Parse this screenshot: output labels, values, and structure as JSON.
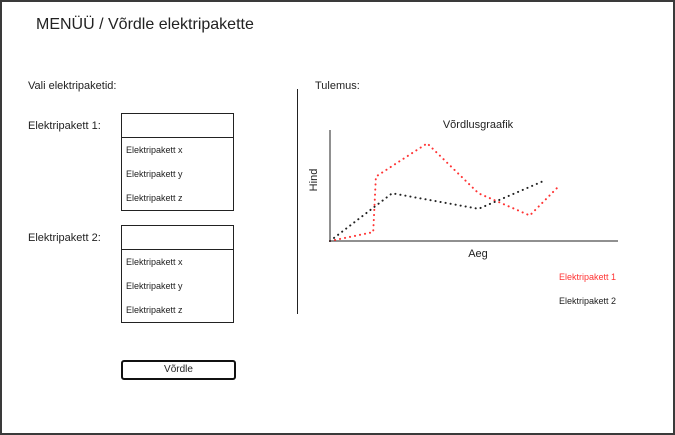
{
  "header": {
    "title": "MENÜÜ / Võrdle elektripakette"
  },
  "left": {
    "section_label": "Vali elektripaketid:",
    "package1": {
      "label": "Elektripakett 1:",
      "selected_value": "",
      "options": [
        "Elektripakett x",
        "Elektripakett y",
        "Elektripakett z"
      ]
    },
    "package2": {
      "label": "Elektripakett 2:",
      "selected_value": "",
      "options": [
        "Elektripakett x",
        "Elektripakett y",
        "Elektripakett z"
      ]
    },
    "compare_button": "Võrdle"
  },
  "right": {
    "section_label": "Tulemus:"
  },
  "colors": {
    "series1": "#ff3333",
    "series2": "#222222"
  },
  "chart_data": {
    "type": "line",
    "title": "Võrdlusgraafik",
    "xlabel": "Aeg",
    "ylabel": "Hind",
    "xlim": [
      0,
      10
    ],
    "ylim": [
      0,
      10
    ],
    "grid": false,
    "legend_position": "bottom-right",
    "series": [
      {
        "name": "Elektripakett 1",
        "color": "#ff3333",
        "style": "dotted",
        "x": [
          0,
          1.6,
          1.7,
          3.6,
          5.5,
          7.4,
          8.5
        ],
        "y": [
          0,
          0.8,
          5.8,
          8.8,
          4.3,
          2.3,
          5.0
        ]
      },
      {
        "name": "Elektripakett 2",
        "color": "#222222",
        "style": "dotted",
        "x": [
          0,
          2.3,
          5.5,
          8.0
        ],
        "y": [
          0,
          4.3,
          2.9,
          5.5
        ]
      }
    ]
  }
}
